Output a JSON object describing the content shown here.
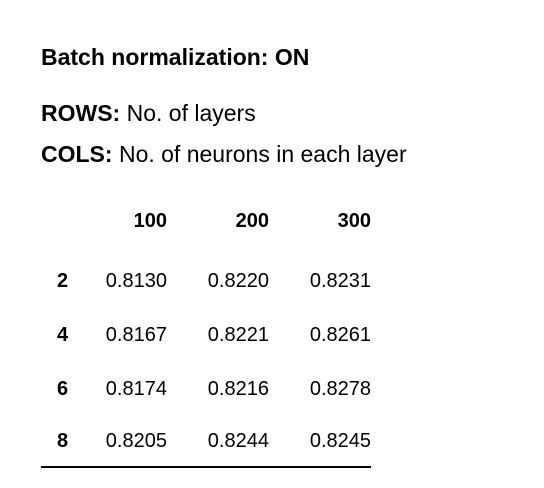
{
  "title": "Batch normalization: ON",
  "legend": {
    "rows_key": "ROWS:",
    "rows_text": " No. of layers",
    "cols_key": "COLS:",
    "cols_text": " No. of neurons in each layer"
  },
  "table": {
    "columns": [
      "100",
      "200",
      "300"
    ],
    "rows": [
      {
        "label": "2",
        "values": [
          "0.8130",
          "0.8220",
          "0.8231"
        ]
      },
      {
        "label": "4",
        "values": [
          "0.8167",
          "0.8221",
          "0.8261"
        ]
      },
      {
        "label": "6",
        "values": [
          "0.8174",
          "0.8216",
          "0.8278"
        ]
      },
      {
        "label": "8",
        "values": [
          "0.8205",
          "0.8244",
          "0.8245"
        ]
      }
    ]
  }
}
